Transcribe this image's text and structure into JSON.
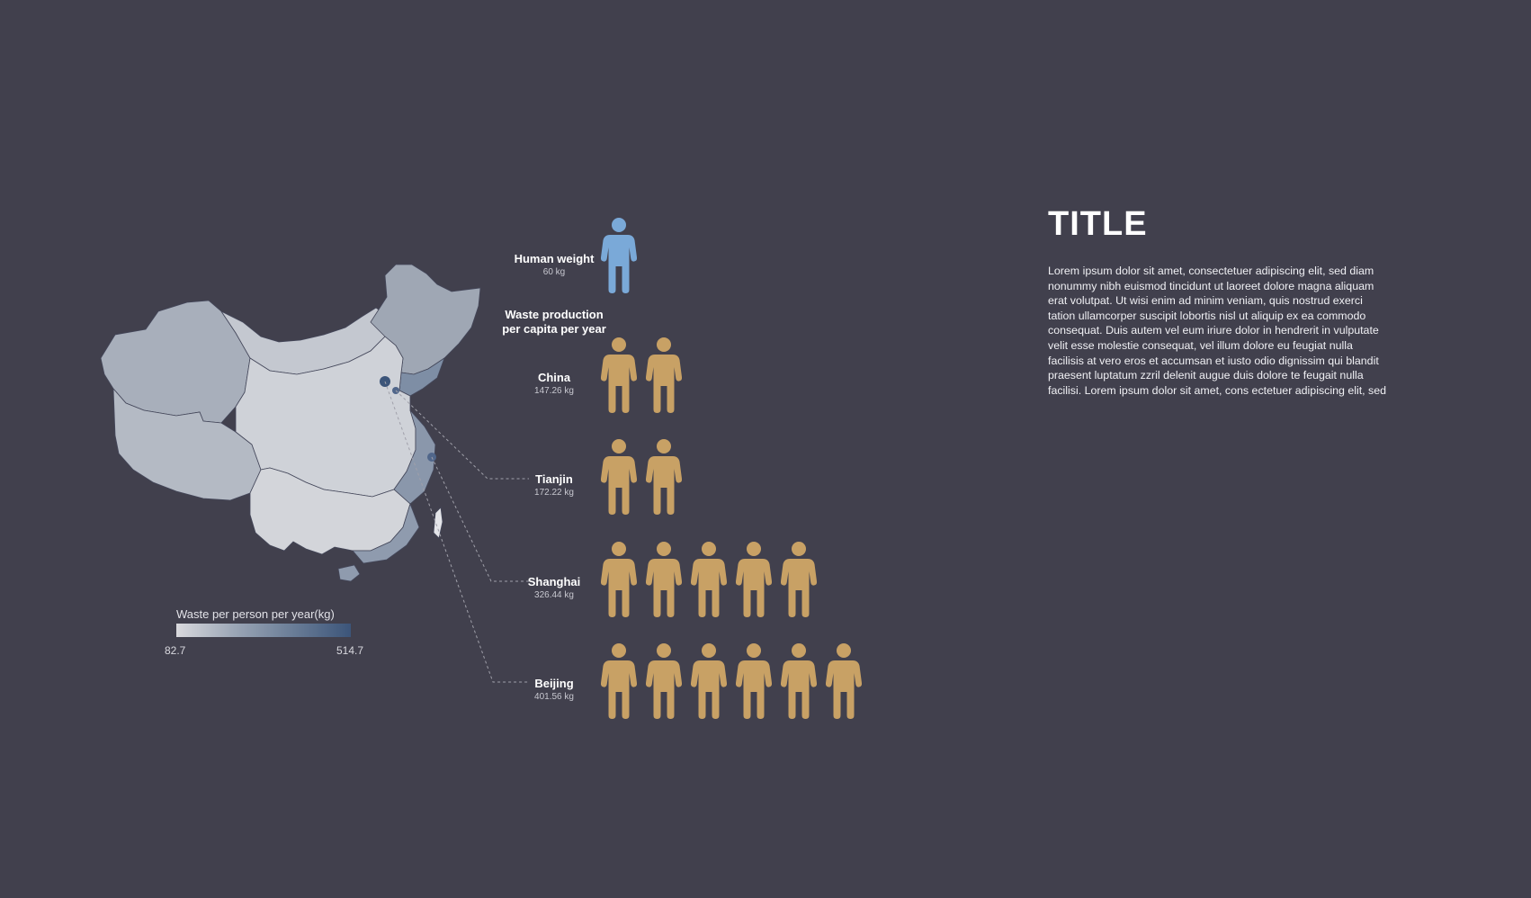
{
  "title": "TITLE",
  "body_text": "Lorem ipsum dolor sit amet, consectetuer adipiscing elit, sed diam nonummy nibh euismod tincidunt ut laoreet dolore magna aliquam erat volutpat. Ut wisi enim ad minim veniam, quis nostrud exerci tation ullamcorper suscipit lobortis nisl ut aliquip ex ea commodo consequat. Duis autem vel eum iriure dolor in hendrerit in vulputate velit esse molestie consequat, vel illum dolore eu feugiat nulla facilisis at vero eros et accumsan et iusto odio dignissim qui blandit praesent luptatum zzril delenit augue duis dolore te feugait nulla facilisi. Lorem ipsum dolor sit amet, cons ectetuer adipiscing elit, sed",
  "human_weight": {
    "label": "Human weight",
    "value_text": "60 kg",
    "value": 60
  },
  "section_label": "Waste production per capita per year",
  "legend": {
    "title": "Waste per person per year(kg)",
    "min": "82.7",
    "max": "514.7"
  },
  "colors": {
    "background": "#41404d",
    "human_icon": "#7aa9d8",
    "waste_icon": "#c8a165",
    "map_low": "#d9d9dd",
    "map_high": "#3c557a"
  },
  "chart_data": {
    "type": "pictogram",
    "unit_kg_per_icon": 60,
    "categories": [
      "China",
      "Tianjin",
      "Shanghai",
      "Beijing"
    ],
    "values": [
      147.26,
      172.22,
      326.44,
      401.56
    ],
    "value_texts": [
      "147.26 kg",
      "172.22 kg",
      "326.44 kg",
      "401.56 kg"
    ]
  }
}
